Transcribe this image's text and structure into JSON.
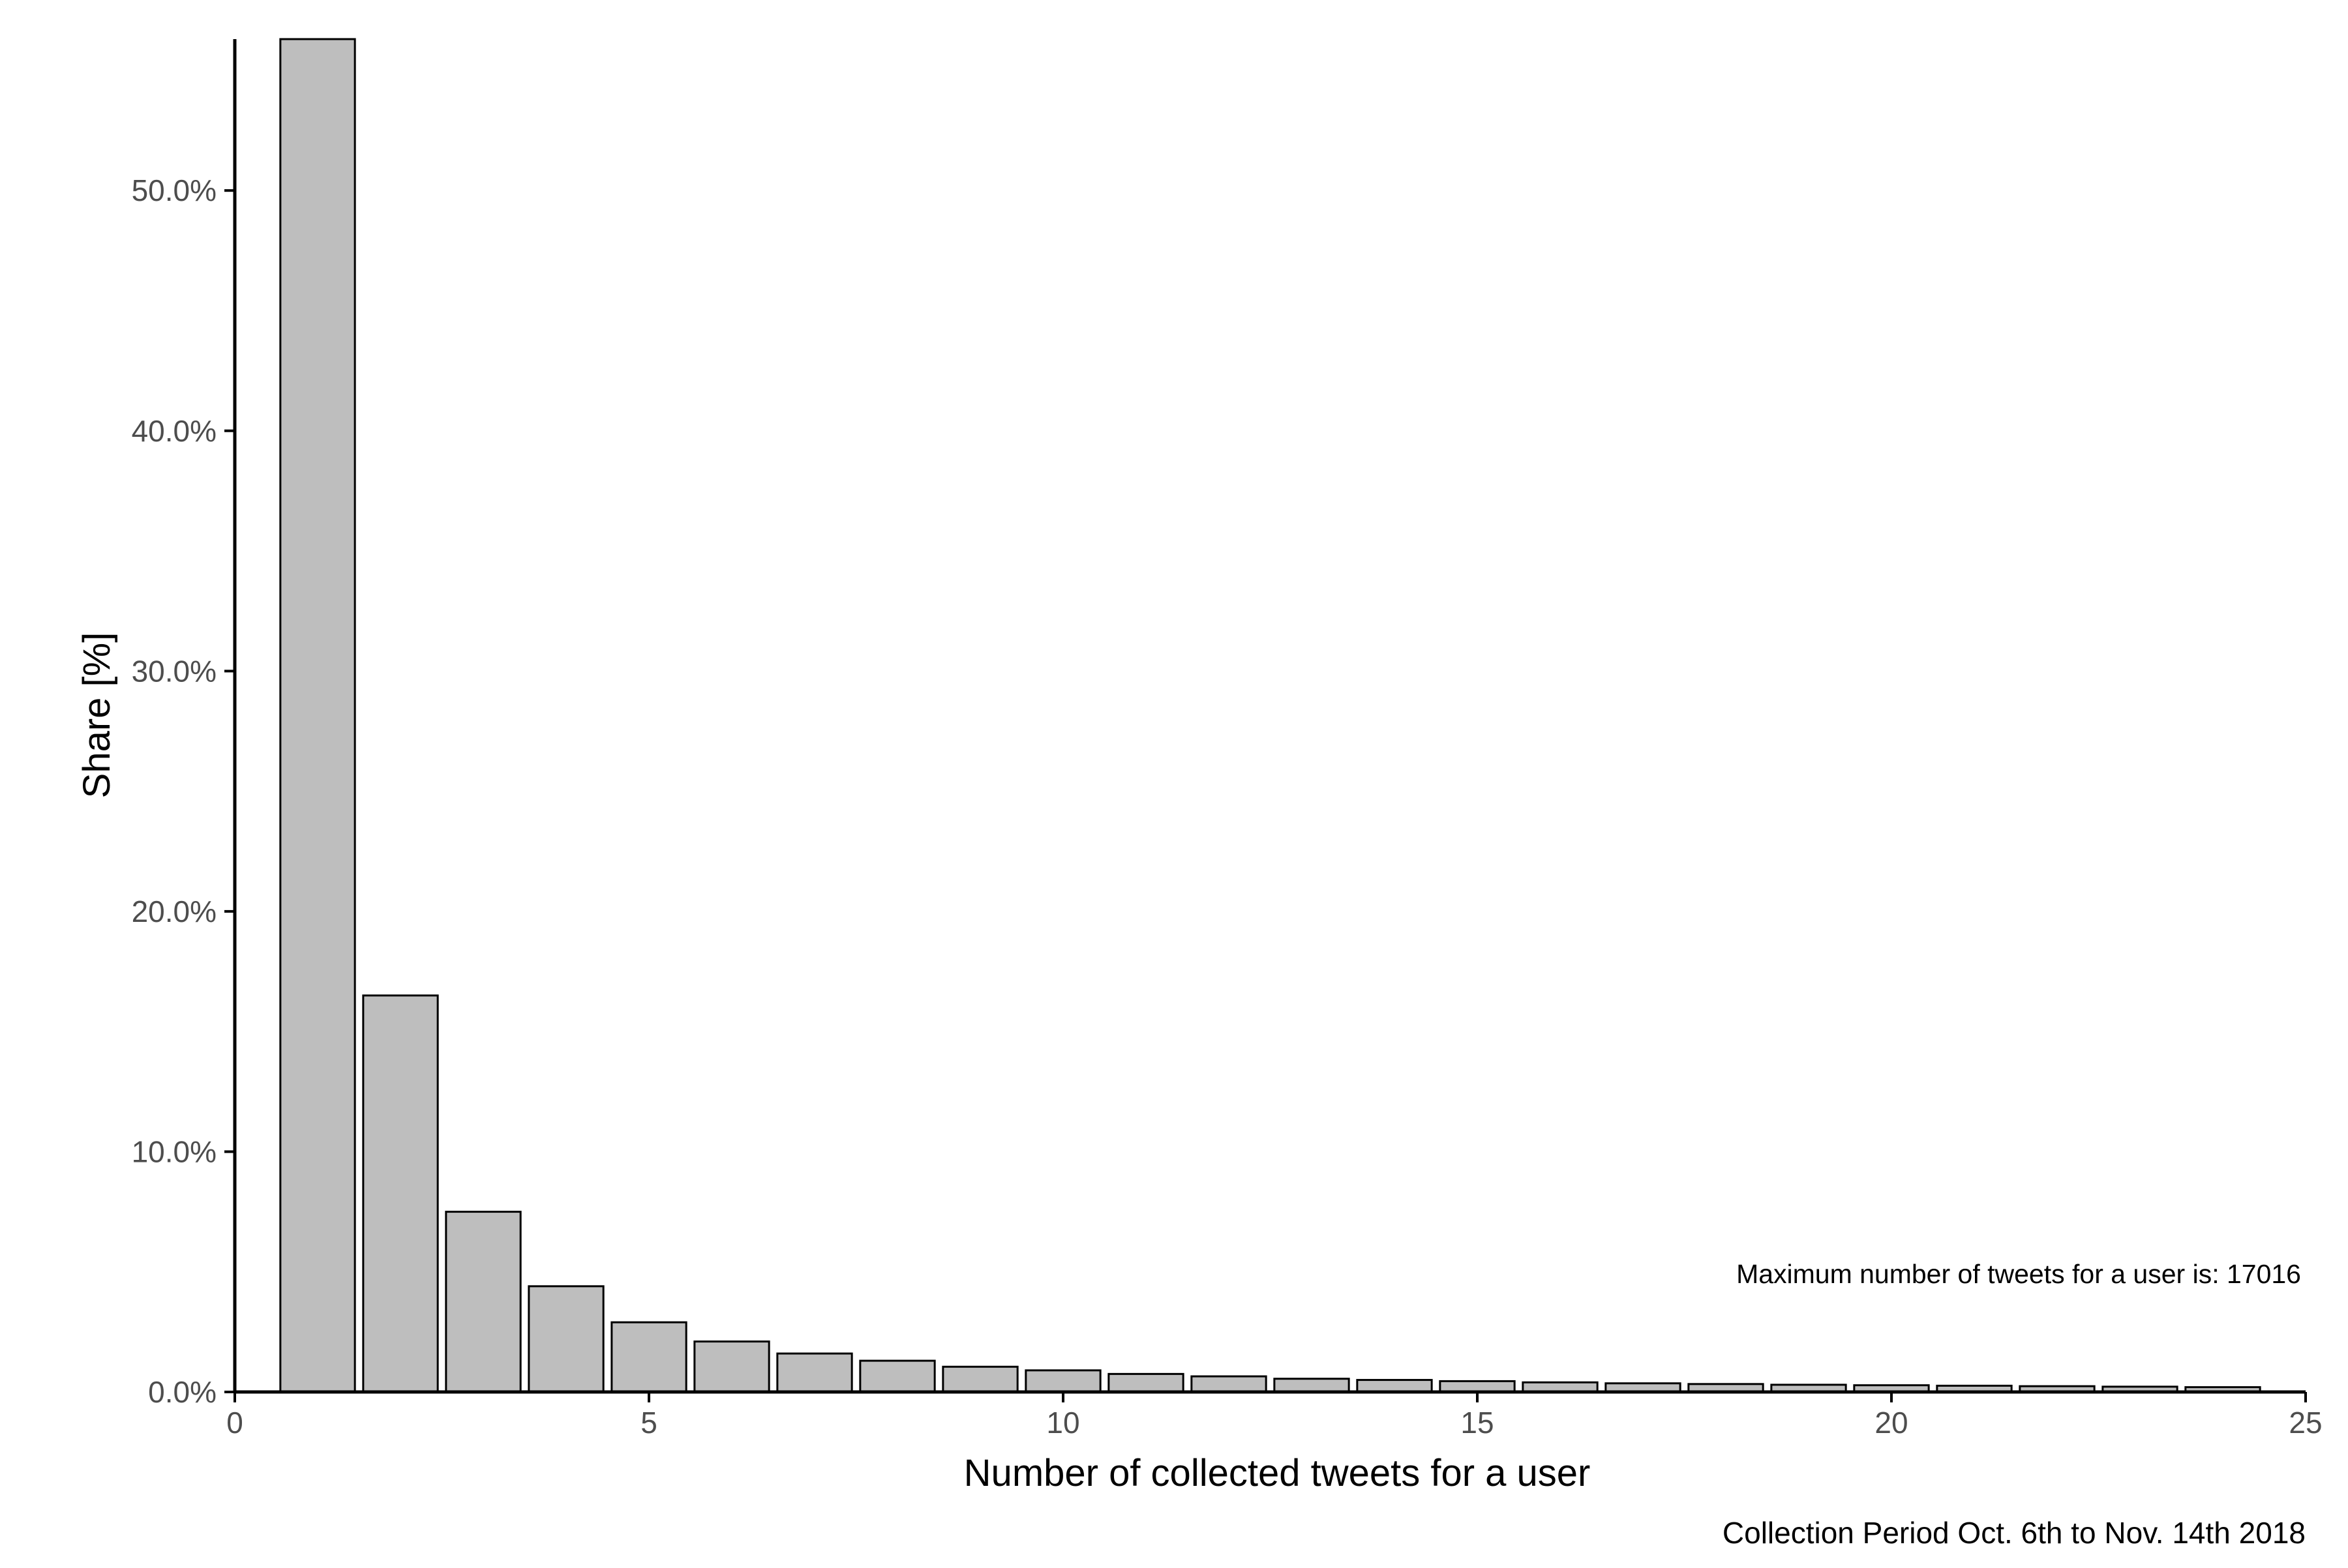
{
  "chart_data": {
    "type": "bar",
    "title": "",
    "xlabel": "Number of collected tweets for a user",
    "ylabel": "Share [%]",
    "caption": "Collection Period Oct. 6th to Nov. 14th 2018",
    "annotation": "Maximum number of tweets for a user is: 17016",
    "xlim": [
      0,
      25
    ],
    "ylim": [
      0,
      56.3
    ],
    "x_ticks": [
      0,
      5,
      10,
      15,
      20,
      25
    ],
    "x_tick_labels": [
      "0",
      "5",
      "10",
      "15",
      "20",
      "25"
    ],
    "y_ticks": [
      0,
      10,
      20,
      30,
      40,
      50
    ],
    "y_tick_labels": [
      "0.0%",
      "10.0%",
      "20.0%",
      "30.0%",
      "40.0%",
      "50.0%"
    ],
    "grid": false,
    "legend": "none",
    "bar_fill": "#bebebe",
    "bar_stroke": "#000000",
    "x": [
      1,
      2,
      3,
      4,
      5,
      6,
      7,
      8,
      9,
      10,
      11,
      12,
      13,
      14,
      15,
      16,
      17,
      18,
      19,
      20,
      21,
      22,
      23,
      24
    ],
    "values": [
      56.3,
      16.5,
      7.5,
      4.4,
      2.9,
      2.1,
      1.6,
      1.3,
      1.05,
      0.9,
      0.75,
      0.65,
      0.55,
      0.5,
      0.45,
      0.4,
      0.36,
      0.33,
      0.3,
      0.28,
      0.26,
      0.24,
      0.22,
      0.2
    ]
  }
}
